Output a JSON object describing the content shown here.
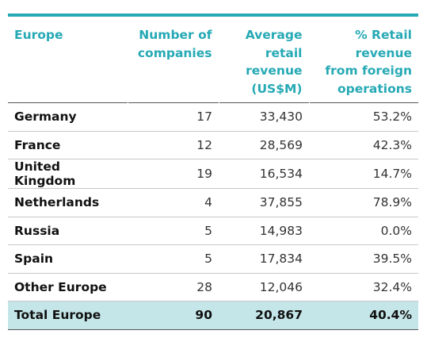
{
  "table": {
    "headers": [
      [
        "Europe"
      ],
      [
        "Number of",
        "companies"
      ],
      [
        "Average",
        "retail",
        "revenue",
        "(US$M)"
      ],
      [
        "% Retail",
        "revenue",
        "from foreign",
        "operations"
      ]
    ],
    "rows": [
      {
        "name": "Germany",
        "companies": "17",
        "revenue": "33,430",
        "foreign": "53.2%"
      },
      {
        "name": "France",
        "companies": "12",
        "revenue": "28,569",
        "foreign": "42.3%"
      },
      {
        "name": "United Kingdom",
        "companies": "19",
        "revenue": "16,534",
        "foreign": "14.7%"
      },
      {
        "name": "Netherlands",
        "companies": "4",
        "revenue": "37,855",
        "foreign": "78.9%"
      },
      {
        "name": "Russia",
        "companies": "5",
        "revenue": "14,983",
        "foreign": "0.0%"
      },
      {
        "name": "Spain",
        "companies": "5",
        "revenue": "17,834",
        "foreign": "39.5%"
      },
      {
        "name": "Other Europe",
        "companies": "28",
        "revenue": "12,046",
        "foreign": "32.4%"
      }
    ],
    "total": {
      "name": "Total Europe",
      "companies": "90",
      "revenue": "20,867",
      "foreign": "40.4%"
    }
  },
  "colors": {
    "accent": "#26a9b5",
    "total_bg": "#c5e6e8"
  }
}
